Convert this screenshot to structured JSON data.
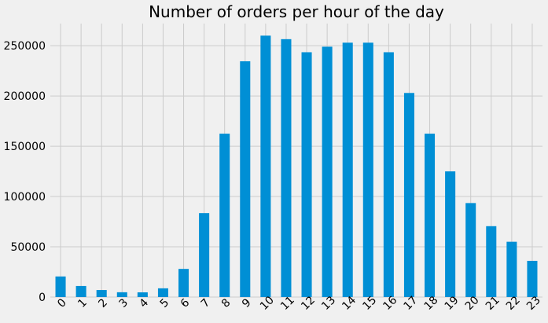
{
  "chart_data": {
    "type": "bar",
    "title": "Number of orders per hour of the day",
    "xlabel": "",
    "ylabel": "",
    "categories": [
      "0",
      "1",
      "2",
      "3",
      "4",
      "5",
      "6",
      "7",
      "8",
      "9",
      "10",
      "11",
      "12",
      "13",
      "14",
      "15",
      "16",
      "17",
      "18",
      "19",
      "20",
      "21",
      "22",
      "23"
    ],
    "values": [
      20500,
      11000,
      7000,
      4800,
      4700,
      8700,
      28000,
      83500,
      162500,
      234500,
      260000,
      256500,
      243500,
      249000,
      253000,
      253000,
      243500,
      203000,
      162500,
      125000,
      93500,
      70500,
      55000,
      36000
    ],
    "ylim": [
      0,
      272000
    ],
    "yticks": [
      0,
      50000,
      100000,
      150000,
      200000,
      250000
    ],
    "ytick_labels": [
      "0",
      "50000",
      "100000",
      "150000",
      "200000",
      "250000"
    ],
    "grid": true,
    "bar_color": "#008fd5",
    "background": "#f0f0f0",
    "grid_color": "#cbcbcb"
  }
}
